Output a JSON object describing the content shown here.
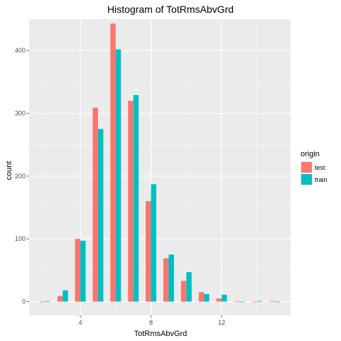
{
  "chart_data": {
    "type": "bar",
    "title": "Histogram of TotRmsAbvGrd",
    "xlabel": "TotRmsAbvGrd",
    "ylabel": "count",
    "x": [
      2,
      3,
      4,
      5,
      6,
      7,
      8,
      9,
      10,
      11,
      12,
      13,
      14,
      15
    ],
    "xlim": [
      1.1,
      15.9
    ],
    "ylim": [
      -22,
      450
    ],
    "x_ticks": [
      4,
      8,
      12
    ],
    "y_ticks": [
      0,
      100,
      200,
      300,
      400
    ],
    "grid": true,
    "legend": {
      "title": "origin",
      "position": "right"
    },
    "series": [
      {
        "name": "test",
        "color": "#F8766D",
        "values": [
          0,
          9,
          100,
          309,
          443,
          320,
          160,
          69,
          33,
          15,
          5,
          1,
          0,
          1
        ]
      },
      {
        "name": "train",
        "color": "#00BFC4",
        "values": [
          1,
          18,
          97,
          275,
          402,
          329,
          187,
          75,
          47,
          12,
          11,
          0,
          1,
          0
        ]
      }
    ]
  }
}
